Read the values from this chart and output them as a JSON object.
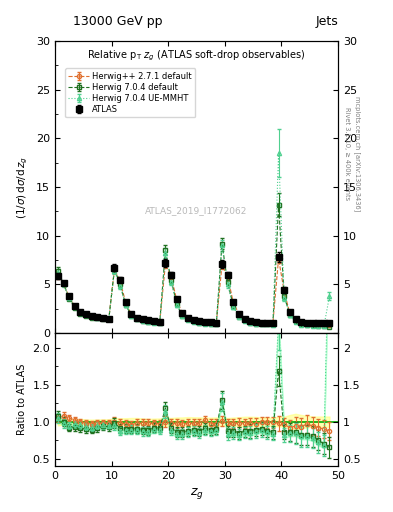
{
  "title_top_left": "13000 GeV pp",
  "title_top_right": "Jets",
  "main_title": "Relative $p_T$ $z_g$ (ATLAS soft-drop observables)",
  "ylabel_main": "(1/σ) dσ/d z_g",
  "ylabel_ratio": "Ratio to ATLAS",
  "xlabel": "z_g",
  "watermark": "ATLAS_2019_I1772062",
  "rivet_text": "Rivet 3.1.10, ≥ 400k events",
  "arxiv_text": "mcplots.cern.ch [arXiv:1306.3436]",
  "xlim": [
    0,
    50
  ],
  "ylim_main": [
    0,
    30
  ],
  "ylim_ratio": [
    0.4,
    2.2
  ],
  "herwig271_color": "#e07030",
  "herwig704d_color": "#207020",
  "herwig704ue_color": "#50d090",
  "atlas_x": [
    0.5,
    1.5,
    2.5,
    3.5,
    4.5,
    5.5,
    6.5,
    7.5,
    8.5,
    9.5,
    10.5,
    11.5,
    12.5,
    13.5,
    14.5,
    15.5,
    16.5,
    17.5,
    18.5,
    19.5,
    20.5,
    21.5,
    22.5,
    23.5,
    24.5,
    25.5,
    26.5,
    27.5,
    28.5,
    29.5,
    30.5,
    31.5,
    32.5,
    33.5,
    34.5,
    35.5,
    36.5,
    37.5,
    38.5,
    39.5,
    40.5,
    41.5,
    42.5,
    43.5,
    44.5,
    45.5,
    46.5,
    47.5,
    48.5
  ],
  "atlas_y": [
    5.9,
    5.1,
    3.8,
    2.8,
    2.2,
    2.0,
    1.8,
    1.7,
    1.6,
    1.5,
    6.7,
    5.5,
    3.2,
    2.0,
    1.6,
    1.4,
    1.3,
    1.2,
    1.15,
    7.2,
    6.0,
    3.5,
    2.1,
    1.6,
    1.35,
    1.2,
    1.1,
    1.1,
    1.05,
    7.1,
    6.0,
    3.2,
    2.0,
    1.5,
    1.2,
    1.1,
    1.05,
    1.05,
    1.05,
    7.8,
    4.4,
    2.2,
    1.4,
    1.1,
    1.0,
    1.0,
    1.0,
    1.0,
    1.0
  ],
  "atlas_yerr": [
    0.3,
    0.2,
    0.15,
    0.1,
    0.08,
    0.06,
    0.05,
    0.05,
    0.05,
    0.05,
    0.35,
    0.25,
    0.15,
    0.1,
    0.08,
    0.06,
    0.05,
    0.05,
    0.05,
    0.4,
    0.3,
    0.2,
    0.12,
    0.1,
    0.08,
    0.07,
    0.06,
    0.06,
    0.06,
    0.4,
    0.3,
    0.18,
    0.12,
    0.1,
    0.08,
    0.07,
    0.06,
    0.06,
    0.06,
    0.5,
    0.3,
    0.2,
    0.15,
    0.1,
    0.08,
    0.07,
    0.07,
    0.07,
    0.07
  ],
  "herwig271_x": [
    0.5,
    1.5,
    2.5,
    3.5,
    4.5,
    5.5,
    6.5,
    7.5,
    8.5,
    9.5,
    10.5,
    11.5,
    12.5,
    13.5,
    14.5,
    15.5,
    16.5,
    17.5,
    18.5,
    19.5,
    20.5,
    21.5,
    22.5,
    23.5,
    24.5,
    25.5,
    26.5,
    27.5,
    28.5,
    29.5,
    30.5,
    31.5,
    32.5,
    33.5,
    34.5,
    35.5,
    36.5,
    37.5,
    38.5,
    39.5,
    40.5,
    41.5,
    42.5,
    43.5,
    44.5,
    45.5,
    46.5,
    47.5,
    48.5
  ],
  "herwig271_y": [
    5.85,
    5.05,
    3.72,
    2.75,
    2.15,
    1.92,
    1.72,
    1.67,
    1.57,
    1.47,
    6.55,
    5.35,
    3.12,
    1.92,
    1.57,
    1.37,
    1.27,
    1.17,
    1.12,
    7.05,
    5.85,
    3.42,
    2.02,
    1.57,
    1.32,
    1.17,
    1.12,
    1.07,
    1.02,
    6.95,
    5.85,
    3.12,
    1.97,
    1.47,
    1.17,
    1.07,
    1.04,
    1.04,
    1.04,
    7.65,
    4.25,
    2.02,
    1.32,
    1.02,
    0.97,
    0.94,
    0.92,
    0.9,
    0.87
  ],
  "herwig271_yerr": [
    0.3,
    0.2,
    0.12,
    0.1,
    0.08,
    0.06,
    0.05,
    0.05,
    0.05,
    0.05,
    0.35,
    0.22,
    0.14,
    0.1,
    0.08,
    0.06,
    0.05,
    0.05,
    0.05,
    0.38,
    0.28,
    0.18,
    0.12,
    0.1,
    0.08,
    0.07,
    0.06,
    0.06,
    0.06,
    0.38,
    0.28,
    0.17,
    0.12,
    0.1,
    0.08,
    0.07,
    0.06,
    0.06,
    0.06,
    0.48,
    0.28,
    0.18,
    0.14,
    0.1,
    0.08,
    0.07,
    0.07,
    0.07,
    0.07
  ],
  "herwig704d_x": [
    0.5,
    1.5,
    2.5,
    3.5,
    4.5,
    5.5,
    6.5,
    7.5,
    8.5,
    9.5,
    10.5,
    11.5,
    12.5,
    13.5,
    14.5,
    15.5,
    16.5,
    17.5,
    18.5,
    19.5,
    20.5,
    21.5,
    22.5,
    23.5,
    24.5,
    25.5,
    26.5,
    27.5,
    28.5,
    29.5,
    30.5,
    31.5,
    32.5,
    33.5,
    34.5,
    35.5,
    36.5,
    37.5,
    38.5,
    39.5,
    40.5,
    41.5,
    42.5,
    43.5,
    44.5,
    45.5,
    46.5,
    47.5,
    48.5
  ],
  "herwig704d_y": [
    6.4,
    5.1,
    3.5,
    2.6,
    2.0,
    1.8,
    1.6,
    1.55,
    1.5,
    1.4,
    6.6,
    5.0,
    2.9,
    1.8,
    1.45,
    1.25,
    1.15,
    1.1,
    1.05,
    8.5,
    5.5,
    3.0,
    1.8,
    1.4,
    1.2,
    1.05,
    1.0,
    0.98,
    0.95,
    9.2,
    5.2,
    2.8,
    1.7,
    1.3,
    1.05,
    0.98,
    0.95,
    0.92,
    0.9,
    13.2,
    3.8,
    1.9,
    1.2,
    0.9,
    0.82,
    0.8,
    0.75,
    0.7,
    0.65
  ],
  "herwig704d_yerr": [
    0.35,
    0.22,
    0.14,
    0.1,
    0.08,
    0.06,
    0.05,
    0.05,
    0.05,
    0.05,
    0.38,
    0.25,
    0.15,
    0.1,
    0.08,
    0.06,
    0.05,
    0.05,
    0.05,
    0.5,
    0.32,
    0.18,
    0.12,
    0.1,
    0.08,
    0.07,
    0.06,
    0.06,
    0.06,
    0.6,
    0.35,
    0.2,
    0.13,
    0.1,
    0.08,
    0.07,
    0.06,
    0.06,
    0.06,
    1.2,
    0.3,
    0.18,
    0.14,
    0.1,
    0.08,
    0.07,
    0.07,
    0.07,
    0.07
  ],
  "herwig704ue_x": [
    0.5,
    1.5,
    2.5,
    3.5,
    4.5,
    5.5,
    6.5,
    7.5,
    8.5,
    9.5,
    10.5,
    11.5,
    12.5,
    13.5,
    14.5,
    15.5,
    16.5,
    17.5,
    18.5,
    19.5,
    20.5,
    21.5,
    22.5,
    23.5,
    24.5,
    25.5,
    26.5,
    27.5,
    28.5,
    29.5,
    30.5,
    31.5,
    32.5,
    33.5,
    34.5,
    35.5,
    36.5,
    37.5,
    38.5,
    39.5,
    40.5,
    41.5,
    42.5,
    43.5,
    44.5,
    45.5,
    46.5,
    47.5,
    48.5
  ],
  "herwig704ue_y": [
    6.2,
    5.0,
    3.6,
    2.7,
    2.1,
    1.85,
    1.65,
    1.6,
    1.52,
    1.42,
    6.4,
    4.8,
    2.85,
    1.78,
    1.42,
    1.22,
    1.12,
    1.08,
    1.02,
    8.2,
    5.3,
    2.9,
    1.75,
    1.38,
    1.18,
    1.02,
    0.98,
    0.96,
    0.93,
    9.0,
    5.0,
    2.7,
    1.65,
    1.28,
    1.02,
    0.96,
    0.93,
    0.9,
    0.88,
    18.5,
    3.6,
    1.85,
    1.18,
    0.88,
    0.8,
    0.78,
    0.72,
    0.68,
    3.8
  ],
  "herwig704ue_yerr": [
    0.35,
    0.22,
    0.14,
    0.1,
    0.08,
    0.06,
    0.05,
    0.05,
    0.05,
    0.05,
    0.38,
    0.25,
    0.15,
    0.1,
    0.08,
    0.06,
    0.05,
    0.05,
    0.05,
    0.5,
    0.32,
    0.18,
    0.12,
    0.1,
    0.08,
    0.07,
    0.06,
    0.06,
    0.06,
    0.6,
    0.35,
    0.2,
    0.13,
    0.1,
    0.08,
    0.07,
    0.06,
    0.06,
    0.06,
    2.5,
    0.3,
    0.18,
    0.14,
    0.1,
    0.08,
    0.07,
    0.07,
    0.07,
    0.4
  ],
  "atlas_band_color": "#ffff80",
  "atlas_band_alpha": 0.6,
  "herwig704ue_band_color": "#80ffb0",
  "herwig704ue_band_alpha": 0.5,
  "ratio_herwig271_y": [
    1.05,
    1.08,
    1.05,
    1.02,
    1.0,
    0.98,
    0.97,
    0.98,
    0.98,
    0.98,
    1.0,
    0.98,
    0.97,
    0.96,
    0.98,
    0.98,
    0.98,
    0.975,
    0.974,
    1.0,
    0.975,
    0.977,
    0.962,
    0.981,
    0.978,
    0.975,
    1.018,
    0.973,
    0.971,
    1.01,
    0.975,
    0.975,
    0.985,
    0.98,
    0.975,
    0.973,
    0.99,
    0.99,
    0.99,
    0.98,
    0.966,
    0.918,
    0.943,
    0.927,
    0.97,
    0.94,
    0.92,
    0.9,
    0.87
  ],
  "ratio_herwig271_err": [
    0.06,
    0.05,
    0.04,
    0.04,
    0.04,
    0.04,
    0.04,
    0.04,
    0.04,
    0.04,
    0.06,
    0.05,
    0.05,
    0.05,
    0.05,
    0.05,
    0.05,
    0.05,
    0.05,
    0.07,
    0.06,
    0.06,
    0.06,
    0.06,
    0.06,
    0.06,
    0.06,
    0.06,
    0.06,
    0.07,
    0.06,
    0.06,
    0.06,
    0.06,
    0.07,
    0.07,
    0.07,
    0.07,
    0.07,
    0.1,
    0.09,
    0.1,
    0.12,
    0.12,
    0.12,
    0.12,
    0.12,
    0.12,
    0.12
  ],
  "ratio_herwig704d_y": [
    1.08,
    1.0,
    0.92,
    0.93,
    0.91,
    0.9,
    0.89,
    0.91,
    0.94,
    0.93,
    0.985,
    0.909,
    0.906,
    0.9,
    0.906,
    0.893,
    0.885,
    0.917,
    0.913,
    1.18,
    0.917,
    0.857,
    0.857,
    0.875,
    0.889,
    0.875,
    0.909,
    0.891,
    0.905,
    1.296,
    0.867,
    0.875,
    0.85,
    0.867,
    0.875,
    0.891,
    0.905,
    0.876,
    0.857,
    1.69,
    0.864,
    0.864,
    0.857,
    0.818,
    0.82,
    0.8,
    0.75,
    0.7,
    0.65
  ],
  "ratio_herwig704d_err": [
    0.07,
    0.06,
    0.05,
    0.05,
    0.05,
    0.05,
    0.05,
    0.05,
    0.05,
    0.05,
    0.07,
    0.06,
    0.06,
    0.06,
    0.06,
    0.06,
    0.06,
    0.06,
    0.06,
    0.09,
    0.07,
    0.07,
    0.07,
    0.07,
    0.07,
    0.07,
    0.07,
    0.07,
    0.07,
    0.12,
    0.08,
    0.08,
    0.08,
    0.08,
    0.09,
    0.09,
    0.09,
    0.09,
    0.09,
    0.2,
    0.1,
    0.12,
    0.14,
    0.14,
    0.14,
    0.14,
    0.14,
    0.14,
    0.14
  ],
  "ratio_herwig704ue_y": [
    1.05,
    0.98,
    0.947,
    0.964,
    0.955,
    0.925,
    0.917,
    0.941,
    0.95,
    0.947,
    0.955,
    0.873,
    0.891,
    0.89,
    0.888,
    0.871,
    0.862,
    0.9,
    0.887,
    1.139,
    0.883,
    0.829,
    0.833,
    0.863,
    0.874,
    0.85,
    0.891,
    0.873,
    0.886,
    1.268,
    0.833,
    0.844,
    0.825,
    0.853,
    0.85,
    0.873,
    0.886,
    0.857,
    0.838,
    2.37,
    0.818,
    0.841,
    0.843,
    0.8,
    0.8,
    0.78,
    0.72,
    0.68,
    3.8
  ],
  "ratio_herwig704ue_err": [
    0.07,
    0.06,
    0.05,
    0.05,
    0.05,
    0.05,
    0.05,
    0.05,
    0.05,
    0.05,
    0.07,
    0.06,
    0.06,
    0.06,
    0.06,
    0.06,
    0.06,
    0.06,
    0.06,
    0.09,
    0.07,
    0.07,
    0.07,
    0.07,
    0.07,
    0.07,
    0.07,
    0.07,
    0.07,
    0.12,
    0.08,
    0.08,
    0.08,
    0.08,
    0.09,
    0.09,
    0.09,
    0.09,
    0.09,
    0.4,
    0.1,
    0.12,
    0.14,
    0.14,
    0.14,
    0.14,
    0.14,
    0.14,
    0.5
  ]
}
